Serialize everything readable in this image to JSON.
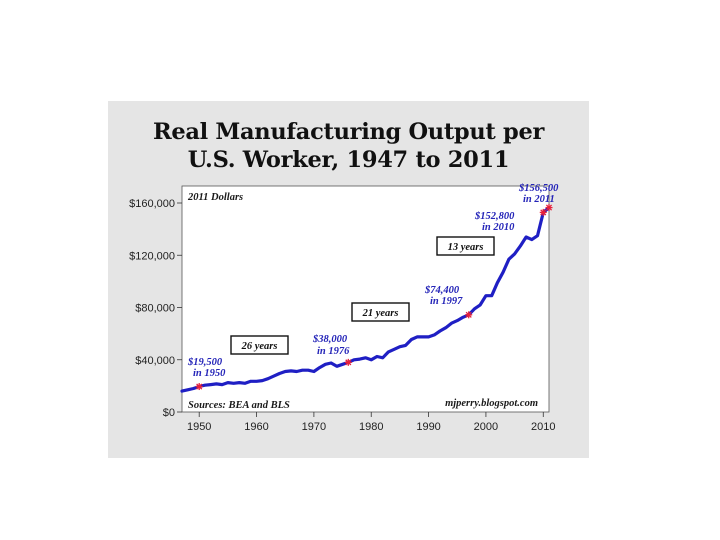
{
  "chart_data": {
    "type": "line",
    "title_line1": "Real Manufacturing Output per",
    "title_line2": "U.S. Worker, 1947 to 2011",
    "units_note": "2011 Dollars",
    "source": "Sources: BEA and BLS",
    "credit": "mjperry.blogspot.com",
    "xlim": [
      1947,
      2011
    ],
    "ylim": [
      0,
      160000
    ],
    "x_ticks": [
      1950,
      1960,
      1970,
      1980,
      1990,
      2000,
      2010
    ],
    "y_ticks": [
      {
        "value": 0,
        "label": "$0"
      },
      {
        "value": 40000,
        "label": "$40,000"
      },
      {
        "value": 80000,
        "label": "$80,000"
      },
      {
        "value": 120000,
        "label": "$120,000"
      },
      {
        "value": 160000,
        "label": "$160,000"
      }
    ],
    "series": [
      {
        "color": "#1f1fc4",
        "x": [
          1947,
          1948,
          1949,
          1950,
          1951,
          1952,
          1953,
          1954,
          1955,
          1956,
          1957,
          1958,
          1959,
          1960,
          1961,
          1962,
          1963,
          1964,
          1965,
          1966,
          1967,
          1968,
          1969,
          1970,
          1971,
          1972,
          1973,
          1974,
          1975,
          1976,
          1977,
          1978,
          1979,
          1980,
          1981,
          1982,
          1983,
          1984,
          1985,
          1986,
          1987,
          1988,
          1989,
          1990,
          1991,
          1992,
          1993,
          1994,
          1995,
          1996,
          1997,
          1998,
          1999,
          2000,
          2001,
          2002,
          2003,
          2004,
          2005,
          2006,
          2007,
          2008,
          2009,
          2010,
          2011
        ],
        "y": [
          16000,
          17000,
          18000,
          19500,
          20500,
          21000,
          21500,
          21000,
          22500,
          22000,
          22500,
          22000,
          23500,
          23500,
          24000,
          25500,
          27500,
          29500,
          31000,
          31500,
          31000,
          32000,
          32000,
          31000,
          34000,
          36500,
          37500,
          35000,
          36500,
          38000,
          40000,
          40500,
          41500,
          40000,
          42500,
          41500,
          46000,
          48000,
          50000,
          51000,
          55500,
          57500,
          57500,
          57500,
          59000,
          62000,
          64500,
          68000,
          70000,
          72500,
          74400,
          79000,
          82000,
          89000,
          89000,
          99000,
          107000,
          117000,
          121000,
          127000,
          134000,
          132000,
          135000,
          152800,
          156500
        ]
      }
    ],
    "highlighted_points": [
      {
        "x": 1950,
        "y": 19500,
        "label1": "$19,500",
        "label2": "in 1950"
      },
      {
        "x": 1976,
        "y": 38000,
        "label1": "$38,000",
        "label2": "in 1976"
      },
      {
        "x": 1997,
        "y": 74400,
        "label1": "$74,400",
        "label2": "in 1997"
      },
      {
        "x": 2010,
        "y": 152800,
        "label1": "$152,800",
        "label2": "in 2010"
      },
      {
        "x": 2011,
        "y": 156500,
        "label1": "$156,500",
        "label2": "in 2011"
      }
    ],
    "interval_boxes": [
      "26 years",
      "21 years",
      "13 years"
    ],
    "grid": false,
    "legend": "none"
  },
  "colors": {
    "line": "#1f1fc4",
    "marker": "#e8203a",
    "annotation": "#2424b8",
    "panel": "#e5e5e5"
  }
}
